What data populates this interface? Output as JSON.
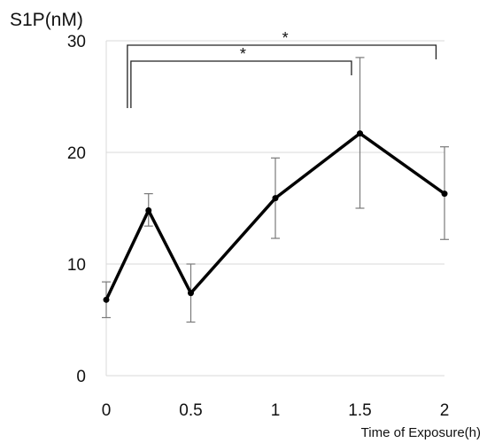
{
  "chart_data": {
    "type": "line",
    "ylabel": "S1P(nM)",
    "xlabel": "Time of Exposure(h)",
    "x": [
      0,
      0.25,
      0.5,
      1,
      1.5,
      2
    ],
    "xticks": [
      "0",
      "0.5",
      "1",
      "1.5",
      "2"
    ],
    "xtick_values": [
      0,
      0.5,
      1,
      1.5,
      2
    ],
    "yticks": [
      "0",
      "10",
      "20",
      "30"
    ],
    "ytick_values": [
      0,
      10,
      20,
      30
    ],
    "ylim": [
      0,
      30
    ],
    "xlim": [
      0,
      2
    ],
    "grid": "horizontal",
    "legend": "none",
    "series": [
      {
        "values": [
          6.8,
          14.8,
          7.4,
          15.9,
          21.7,
          16.3
        ],
        "error_low": [
          5.2,
          13.4,
          4.8,
          12.3,
          15.0,
          12.2
        ],
        "error_high": [
          8.4,
          16.3,
          10.0,
          19.5,
          28.5,
          20.5
        ],
        "color": "#000000"
      }
    ],
    "significance": [
      {
        "from": 0.125,
        "to": 1.45,
        "label": "*"
      },
      {
        "from": 0.125,
        "to": 1.95,
        "label": "*"
      }
    ],
    "colors": {
      "line": "#000000",
      "error_bar": "#7a7a7a",
      "axis": "#d9d9d9",
      "grid": "#d9d9d9"
    }
  }
}
